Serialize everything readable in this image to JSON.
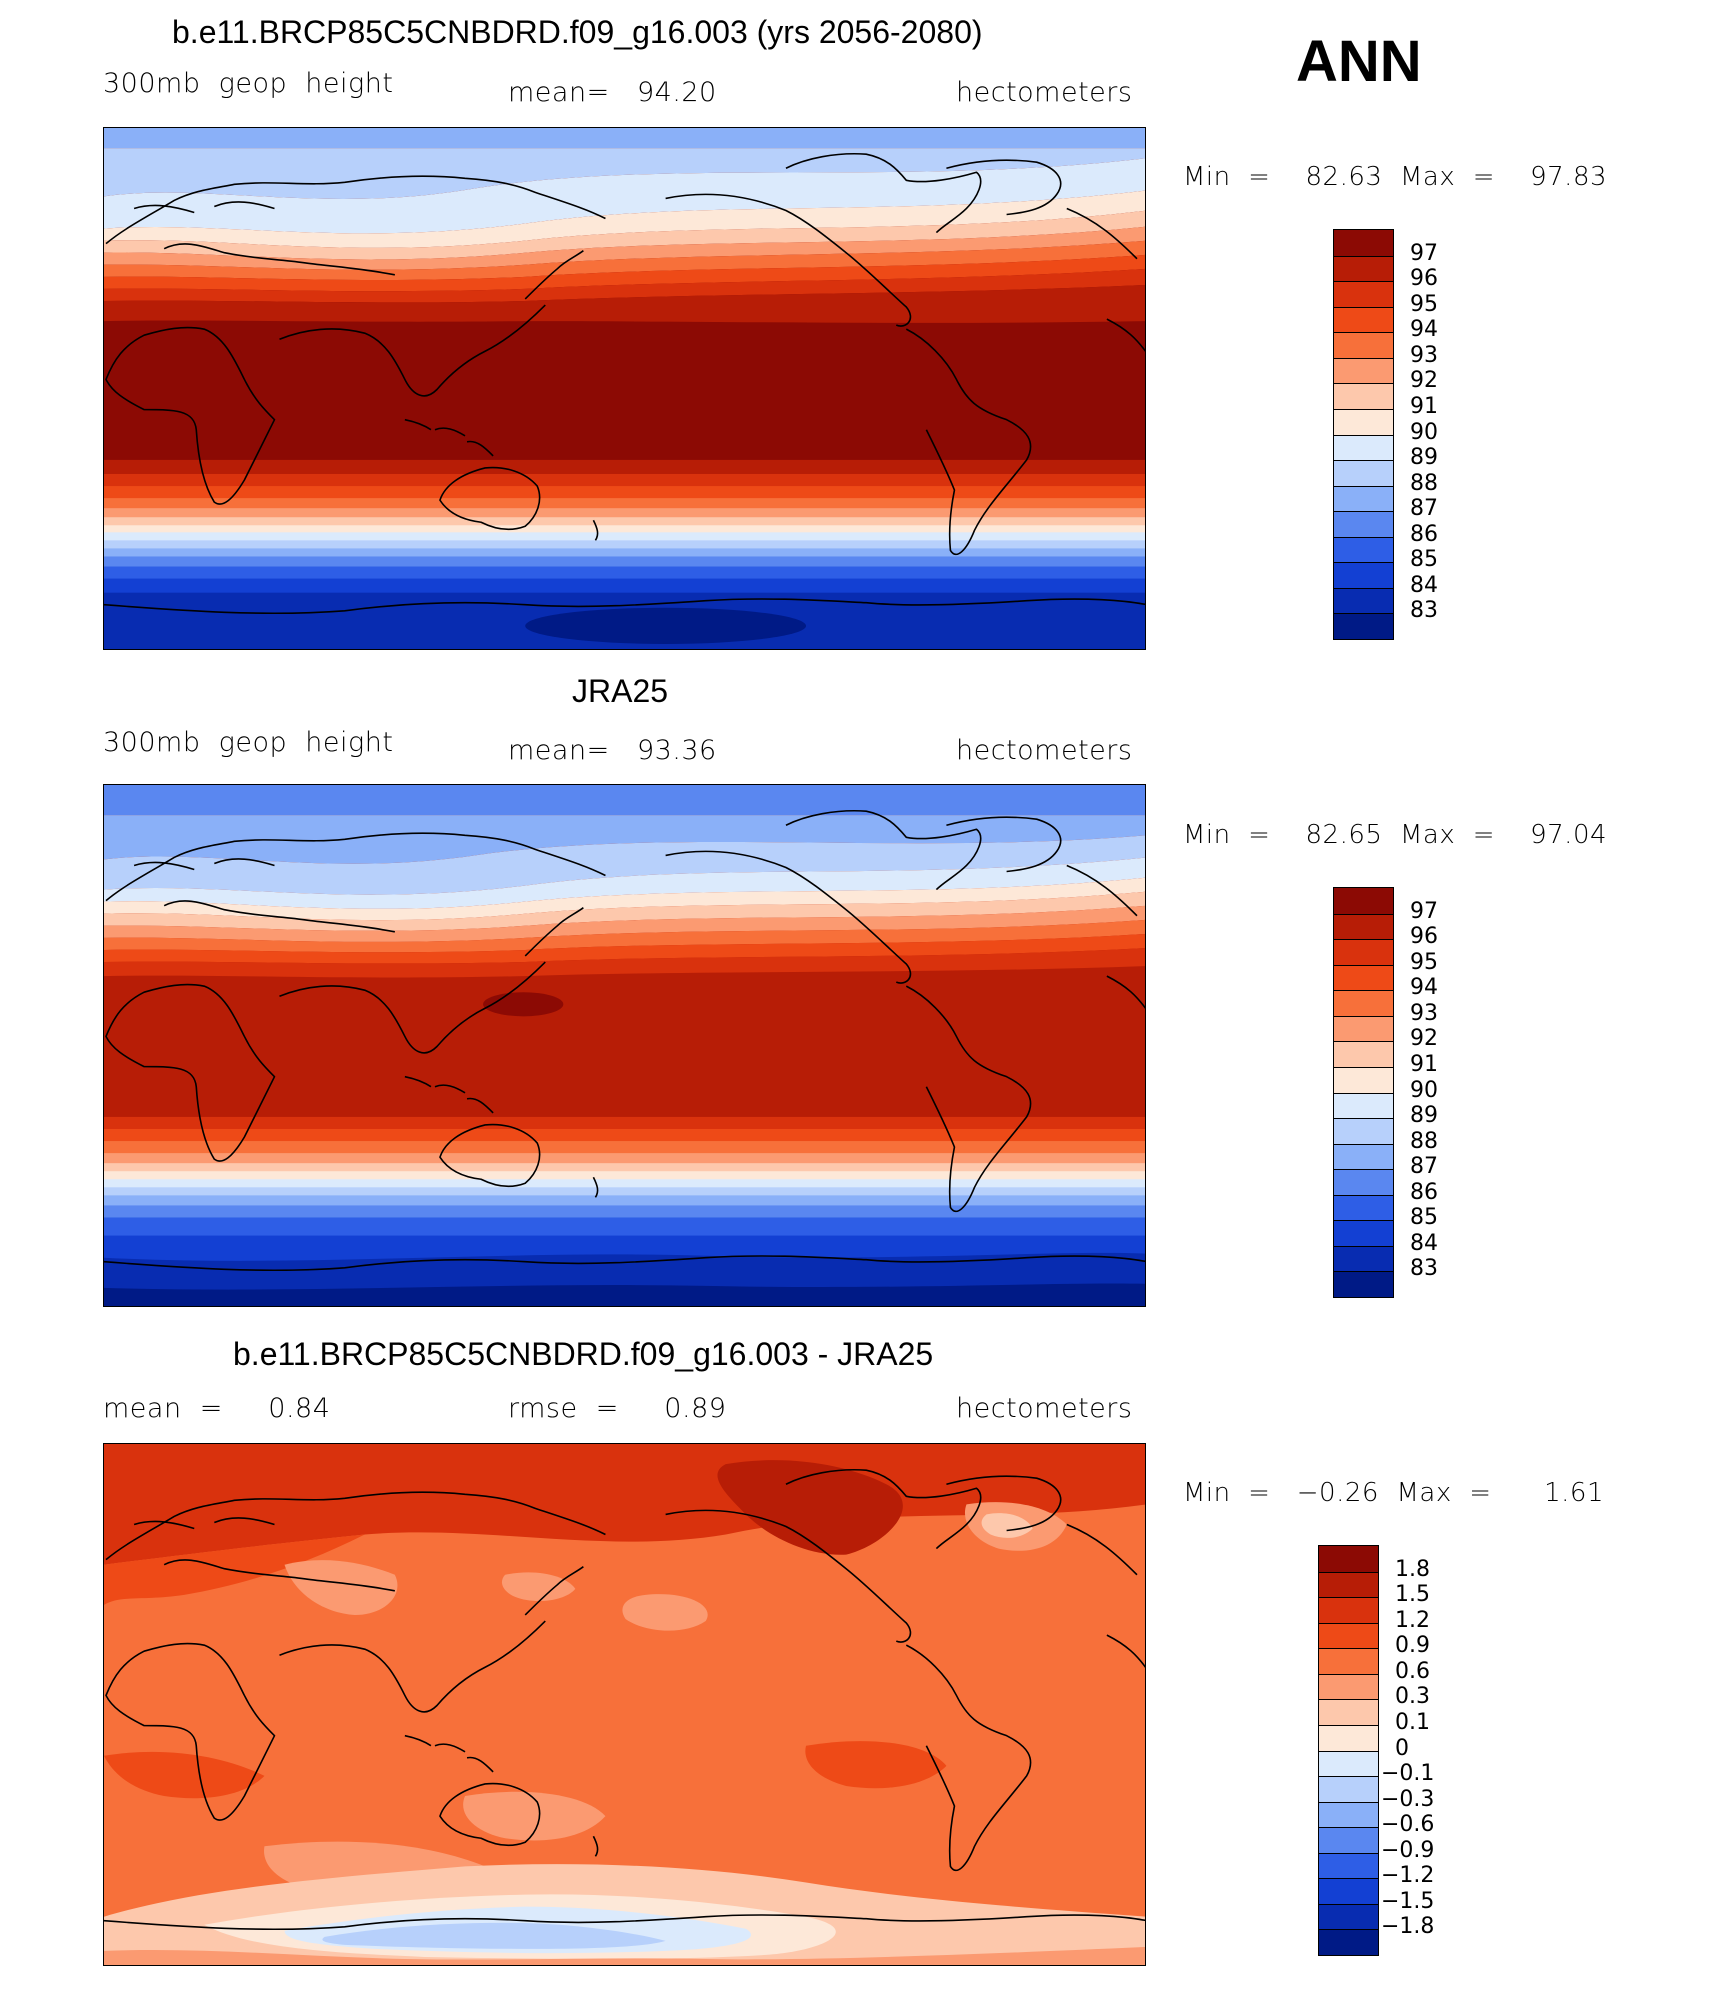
{
  "season": "ANN",
  "panels": [
    {
      "title": "b.e11.BRCP85C5CNBDRD.f09_g16.003 (yrs 2056-2080)",
      "left": "300mb  geop  height",
      "center": "mean=   94.20",
      "right": "hectometers",
      "minmax": "Min  =    82.63  Max  =    97.83",
      "levels": [
        "97",
        "96",
        "95",
        "94",
        "93",
        "92",
        "91",
        "90",
        "89",
        "88",
        "87",
        "86",
        "85",
        "84",
        "83"
      ],
      "colors": [
        "#8c0a04",
        "#b71d06",
        "#d9320d",
        "#ee4a17",
        "#f7703a",
        "#fb9a71",
        "#fdc8ac",
        "#fde8d8",
        "#dbeafc",
        "#b7d0fb",
        "#8ab0f8",
        "#5a87f0",
        "#2e5ee6",
        "#1340d3",
        "#082cb1",
        "#001a86"
      ]
    },
    {
      "title": "JRA25",
      "left": "300mb  geop  height",
      "center": "mean=   93.36",
      "right": "hectometers",
      "minmax": "Min  =    82.65  Max  =    97.04",
      "levels": [
        "97",
        "96",
        "95",
        "94",
        "93",
        "92",
        "91",
        "90",
        "89",
        "88",
        "87",
        "86",
        "85",
        "84",
        "83"
      ],
      "colors": [
        "#8c0a04",
        "#b71d06",
        "#d9320d",
        "#ee4a17",
        "#f7703a",
        "#fb9a71",
        "#fdc8ac",
        "#fde8d8",
        "#dbeafc",
        "#b7d0fb",
        "#8ab0f8",
        "#5a87f0",
        "#2e5ee6",
        "#1340d3",
        "#082cb1",
        "#001a86"
      ]
    },
    {
      "title": "b.e11.BRCP85C5CNBDRD.f09_g16.003 - JRA25",
      "left": "mean  =     0.84",
      "center": "rmse  =     0.89",
      "right": "hectometers",
      "minmax": "Min  =   −0.26  Max  =      1.61",
      "levels": [
        "1.8",
        "1.5",
        "1.2",
        "0.9",
        "0.6",
        "0.3",
        "0.1",
        "0",
        "−0.1",
        "−0.3",
        "−0.6",
        "−0.9",
        "−1.2",
        "−1.5",
        "−1.8"
      ],
      "colors": [
        "#8c0a04",
        "#b71d06",
        "#d9320d",
        "#ee4a17",
        "#f7703a",
        "#fb9a71",
        "#fdc8ac",
        "#fde8d8",
        "#dbeafc",
        "#b7d0fb",
        "#8ab0f8",
        "#5a87f0",
        "#2e5ee6",
        "#1340d3",
        "#082cb1",
        "#001a86"
      ]
    }
  ]
}
